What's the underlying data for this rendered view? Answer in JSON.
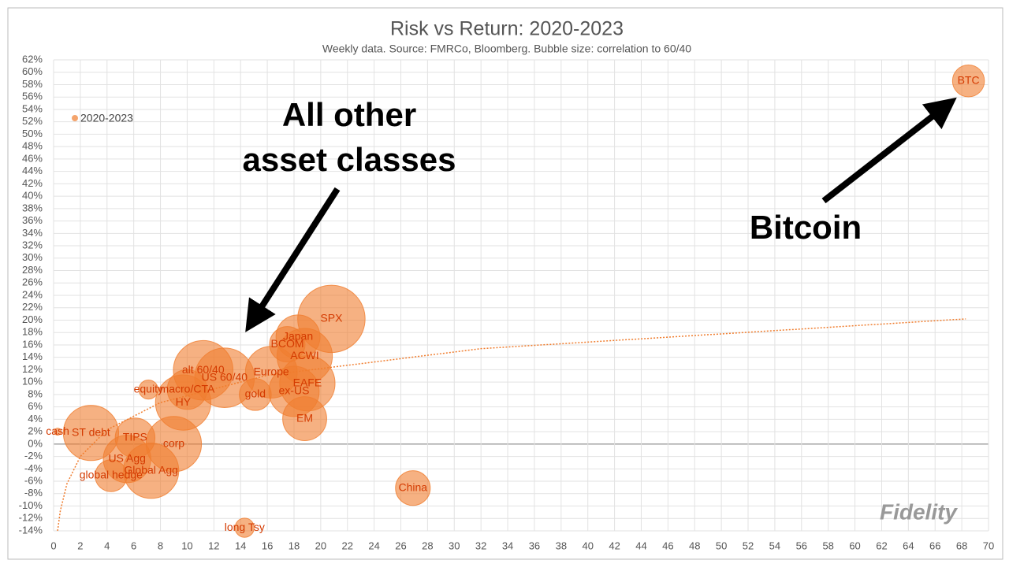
{
  "chart_data": {
    "type": "bubble",
    "title": "Risk vs Return: 2020-2023",
    "subtitle": "Weekly data.  Source: FMRCo, Bloomberg.  Bubble size: correlation to 60/40",
    "xlim": [
      0,
      70
    ],
    "xticks": [
      0,
      2,
      4,
      6,
      8,
      10,
      12,
      14,
      16,
      18,
      20,
      22,
      24,
      26,
      28,
      30,
      32,
      34,
      36,
      38,
      40,
      42,
      44,
      46,
      48,
      50,
      52,
      54,
      56,
      58,
      60,
      62,
      64,
      66,
      68,
      70
    ],
    "ylim": [
      -14,
      62
    ],
    "yticks": [
      {
        "value": -14,
        "label": "-14%"
      },
      {
        "value": -12,
        "label": "-12%"
      },
      {
        "value": -10,
        "label": "-10%"
      },
      {
        "value": -8,
        "label": "-8%"
      },
      {
        "value": -6,
        "label": "-6%"
      },
      {
        "value": -4,
        "label": "-4%"
      },
      {
        "value": -2,
        "label": "-2%"
      },
      {
        "value": 0,
        "label": "0%"
      },
      {
        "value": 2,
        "label": "2%"
      },
      {
        "value": 4,
        "label": "4%"
      },
      {
        "value": 6,
        "label": "6%"
      },
      {
        "value": 8,
        "label": "8%"
      },
      {
        "value": 10,
        "label": "10%"
      },
      {
        "value": 12,
        "label": "12%"
      },
      {
        "value": 14,
        "label": "14%"
      },
      {
        "value": 16,
        "label": "16%"
      },
      {
        "value": 18,
        "label": "18%"
      },
      {
        "value": 20,
        "label": "20%"
      },
      {
        "value": 22,
        "label": "22%"
      },
      {
        "value": 24,
        "label": "24%"
      },
      {
        "value": 26,
        "label": "26%"
      },
      {
        "value": 28,
        "label": "28%"
      },
      {
        "value": 30,
        "label": "30%"
      },
      {
        "value": 32,
        "label": "32%"
      },
      {
        "value": 34,
        "label": "34%"
      },
      {
        "value": 36,
        "label": "36%"
      },
      {
        "value": 38,
        "label": "38%"
      },
      {
        "value": 40,
        "label": "40%"
      },
      {
        "value": 42,
        "label": "42%"
      },
      {
        "value": 44,
        "label": "44%"
      },
      {
        "value": 46,
        "label": "46%"
      },
      {
        "value": 48,
        "label": "48%"
      },
      {
        "value": 50,
        "label": "50%"
      },
      {
        "value": 52,
        "label": "52%"
      },
      {
        "value": 54,
        "label": "54%"
      },
      {
        "value": 56,
        "label": "56%"
      },
      {
        "value": 58,
        "label": "58%"
      },
      {
        "value": 60,
        "label": "60%"
      },
      {
        "value": 62,
        "label": "62%"
      }
    ],
    "grid": true,
    "legend": "top-left",
    "series": [
      {
        "name": "2020-2023",
        "color": "#f07d2e",
        "labels": [
          "BTC",
          "SPX",
          "Japan",
          "BCOM",
          "ACWI",
          "Europe",
          "EAFE",
          "ex-US",
          "gold",
          "EM",
          "US 60/40",
          "alt 60/40",
          "macro/CTA",
          "HY",
          "equity",
          "cash",
          "ST debt",
          "TIPS",
          "corp",
          "US Agg",
          "Global Agg",
          "global hedge",
          "China",
          "long Tsy"
        ],
        "x": [
          68.5,
          20.8,
          18.3,
          17.5,
          18.8,
          16.3,
          19.0,
          18.0,
          15.1,
          18.8,
          12.8,
          11.2,
          10.0,
          9.7,
          7.1,
          0.3,
          2.8,
          6.1,
          9.0,
          5.5,
          7.3,
          4.3,
          26.9,
          14.3
        ],
        "values": [
          58.6,
          20.2,
          17.3,
          16.1,
          14.2,
          11.6,
          9.8,
          8.5,
          8.0,
          4.1,
          10.7,
          11.9,
          8.8,
          6.7,
          8.8,
          2.0,
          1.8,
          1.0,
          0.0,
          -2.4,
          -4.3,
          -5.1,
          -7.1,
          -13.5
        ],
        "sizes": [
          0.45,
          0.95,
          0.62,
          0.5,
          0.78,
          0.73,
          0.78,
          0.71,
          0.45,
          0.62,
          0.84,
          0.84,
          0.56,
          0.78,
          0.27,
          0.1,
          0.78,
          0.56,
          0.78,
          0.67,
          0.78,
          0.45,
          0.49,
          0.27
        ]
      }
    ],
    "trendline": {
      "x": [
        0.3,
        0.5,
        1,
        2,
        4,
        8,
        16,
        32,
        68.3
      ],
      "y": [
        -14,
        -10.8,
        -6.4,
        -2.0,
        2.3,
        6.7,
        11.1,
        15.4,
        20.2
      ]
    },
    "annotations": [
      "All other",
      "asset classes",
      "Bitcoin"
    ],
    "logo": "Fidelity"
  }
}
